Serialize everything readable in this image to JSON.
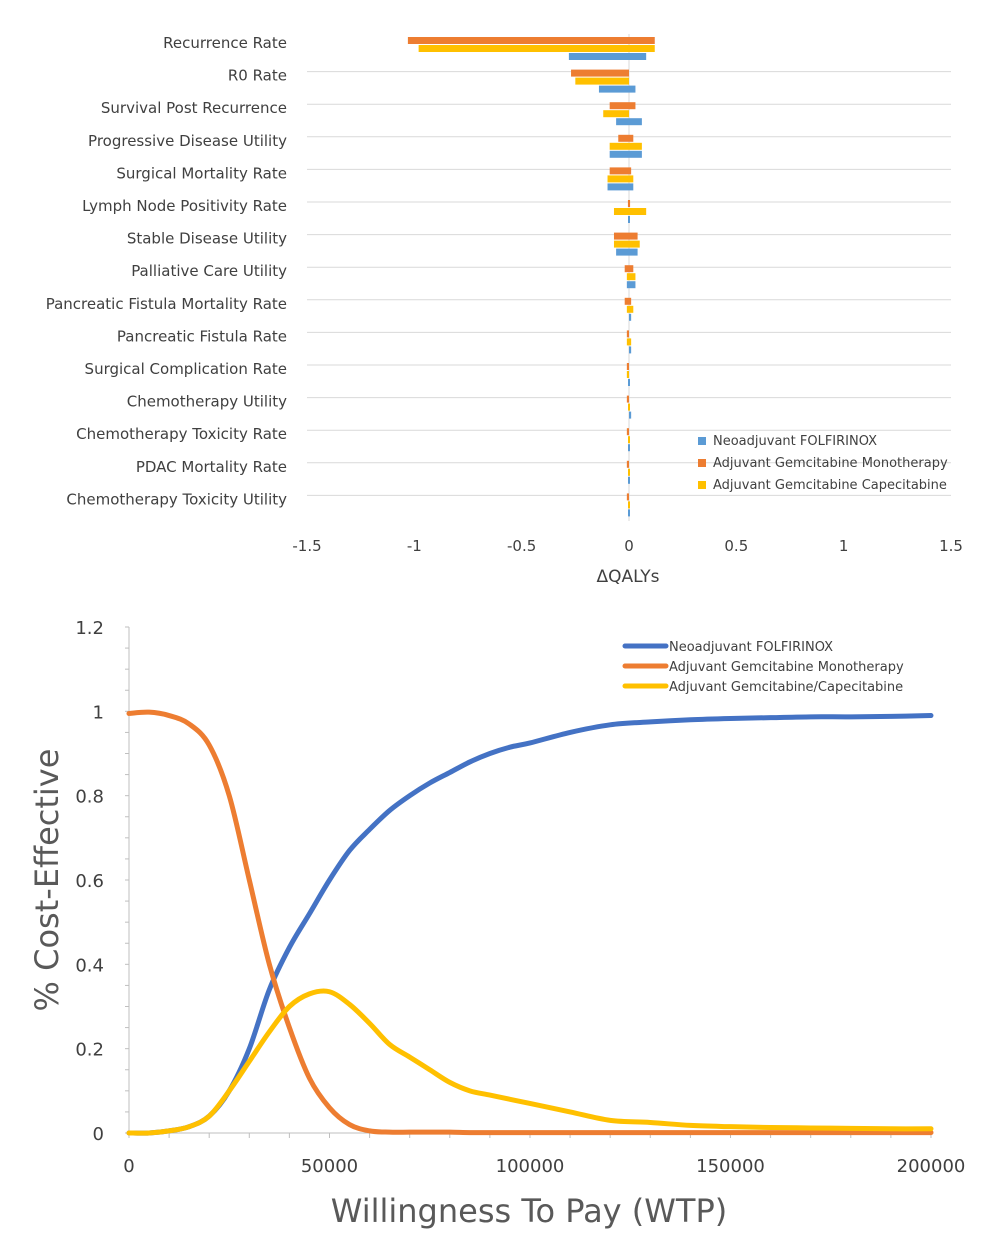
{
  "colors": {
    "blue_bar": "#5b9bd5",
    "orange": "#ed7d31",
    "yellow": "#ffc000",
    "blue_line": "#4472c4",
    "grid": "#d9d9d9",
    "text": "#404040"
  },
  "chart_data": [
    {
      "type": "bar",
      "orientation": "horizontal",
      "title": "",
      "xlabel": "ΔQALYs",
      "ylabel": "",
      "xlim": [
        -1.5,
        1.5
      ],
      "xticks": [
        "-1.5",
        "-1",
        "-0.5",
        "0",
        "0.5",
        "1",
        "1.5"
      ],
      "legend_position": "bottom-right",
      "categories": [
        "Recurrence Rate",
        "R0 Rate",
        "Survival Post Recurrence",
        "Progressive Disease Utility",
        "Surgical Mortality Rate",
        "Lymph Node Positivity Rate",
        "Stable Disease Utility",
        "Palliative Care Utility",
        "Pancreatic Fistula Mortality Rate",
        "Pancreatic Fistula Rate",
        "Surgical Complication Rate",
        "Chemotherapy Utility",
        "Chemotherapy Toxicity Rate",
        "PDAC Mortality Rate",
        "Chemotherapy Toxicity Utility"
      ],
      "series": [
        {
          "name": "Neoadjuvant FOLFIRINOX",
          "color": "#5b9bd5",
          "ranges": [
            [
              -0.28,
              0.08
            ],
            [
              -0.14,
              0.03
            ],
            [
              -0.06,
              0.06
            ],
            [
              -0.09,
              0.06
            ],
            [
              -0.1,
              0.02
            ],
            [
              0.0,
              0.005
            ],
            [
              -0.06,
              0.04
            ],
            [
              -0.01,
              0.03
            ],
            [
              0.0,
              0.01
            ],
            [
              0.0,
              0.01
            ],
            [
              0.0,
              0.0
            ],
            [
              0.0,
              0.01
            ],
            [
              0.0,
              0.0
            ],
            [
              0.0,
              0.0
            ],
            [
              0.0,
              0.0
            ]
          ]
        },
        {
          "name": "Adjuvant Gemcitabine Monotherapy",
          "color": "#ed7d31",
          "ranges": [
            [
              -1.03,
              0.12
            ],
            [
              -0.27,
              0.0
            ],
            [
              -0.09,
              0.03
            ],
            [
              -0.05,
              0.02
            ],
            [
              -0.09,
              0.01
            ],
            [
              -0.005,
              0.005
            ],
            [
              -0.07,
              0.04
            ],
            [
              -0.02,
              0.02
            ],
            [
              -0.02,
              0.01
            ],
            [
              -0.01,
              0.0
            ],
            [
              -0.01,
              0.0
            ],
            [
              -0.01,
              0.0
            ],
            [
              -0.01,
              0.0
            ],
            [
              -0.01,
              0.0
            ],
            [
              -0.01,
              0.0
            ]
          ]
        },
        {
          "name": "Adjuvant Gemcitabine Capecitabine",
          "color": "#ffc000",
          "ranges": [
            [
              -0.98,
              0.12
            ],
            [
              -0.25,
              0.0
            ],
            [
              -0.12,
              0.0
            ],
            [
              -0.09,
              0.06
            ],
            [
              -0.1,
              0.02
            ],
            [
              -0.07,
              0.08
            ],
            [
              -0.07,
              0.05
            ],
            [
              -0.01,
              0.03
            ],
            [
              -0.01,
              0.02
            ],
            [
              -0.01,
              0.01
            ],
            [
              -0.01,
              0.0
            ],
            [
              0.0,
              0.0
            ],
            [
              0.0,
              0.0
            ],
            [
              0.0,
              0.0
            ],
            [
              0.0,
              0.0
            ]
          ]
        }
      ]
    },
    {
      "type": "line",
      "title": "",
      "xlabel": "Willingness To Pay (WTP)",
      "ylabel": "% Cost-Effective",
      "xlim": [
        0,
        200000
      ],
      "ylim": [
        0,
        1.2
      ],
      "xticks": [
        "0",
        "50000",
        "100000",
        "150000",
        "200000"
      ],
      "yticks": [
        "0",
        "0.2",
        "0.4",
        "0.6",
        "0.8",
        "1",
        "1.2"
      ],
      "legend_position": "top-right",
      "x": [
        0,
        5000,
        10000,
        15000,
        20000,
        25000,
        30000,
        35000,
        40000,
        45000,
        50000,
        55000,
        60000,
        65000,
        70000,
        75000,
        80000,
        85000,
        90000,
        95000,
        100000,
        110000,
        120000,
        130000,
        140000,
        150000,
        160000,
        170000,
        180000,
        190000,
        200000
      ],
      "series": [
        {
          "name": "Neoadjuvant FOLFIRINOX",
          "color": "#4472c4",
          "values": [
            0.0,
            0.0,
            0.005,
            0.015,
            0.04,
            0.1,
            0.2,
            0.34,
            0.44,
            0.52,
            0.6,
            0.67,
            0.72,
            0.765,
            0.8,
            0.83,
            0.855,
            0.88,
            0.9,
            0.915,
            0.925,
            0.95,
            0.968,
            0.975,
            0.98,
            0.983,
            0.985,
            0.987,
            0.987,
            0.988,
            0.99
          ]
        },
        {
          "name": "Adjuvant Gemcitabine Monotherapy",
          "color": "#ed7d31",
          "values": [
            0.995,
            0.998,
            0.99,
            0.97,
            0.92,
            0.8,
            0.6,
            0.4,
            0.25,
            0.13,
            0.06,
            0.02,
            0.005,
            0.002,
            0.002,
            0.002,
            0.002,
            0.001,
            0.001,
            0.001,
            0.001,
            0.001,
            0.001,
            0.001,
            0.001,
            0.001,
            0.001,
            0.001,
            0.001,
            0.001,
            0.001
          ]
        },
        {
          "name": "Adjuvant Gemcitabine/Capecitabine",
          "color": "#ffc000",
          "values": [
            0.0,
            0.0,
            0.005,
            0.015,
            0.04,
            0.1,
            0.17,
            0.24,
            0.3,
            0.33,
            0.335,
            0.305,
            0.26,
            0.21,
            0.18,
            0.15,
            0.12,
            0.1,
            0.09,
            0.08,
            0.07,
            0.05,
            0.03,
            0.025,
            0.018,
            0.015,
            0.013,
            0.012,
            0.011,
            0.01,
            0.01
          ]
        }
      ]
    }
  ]
}
